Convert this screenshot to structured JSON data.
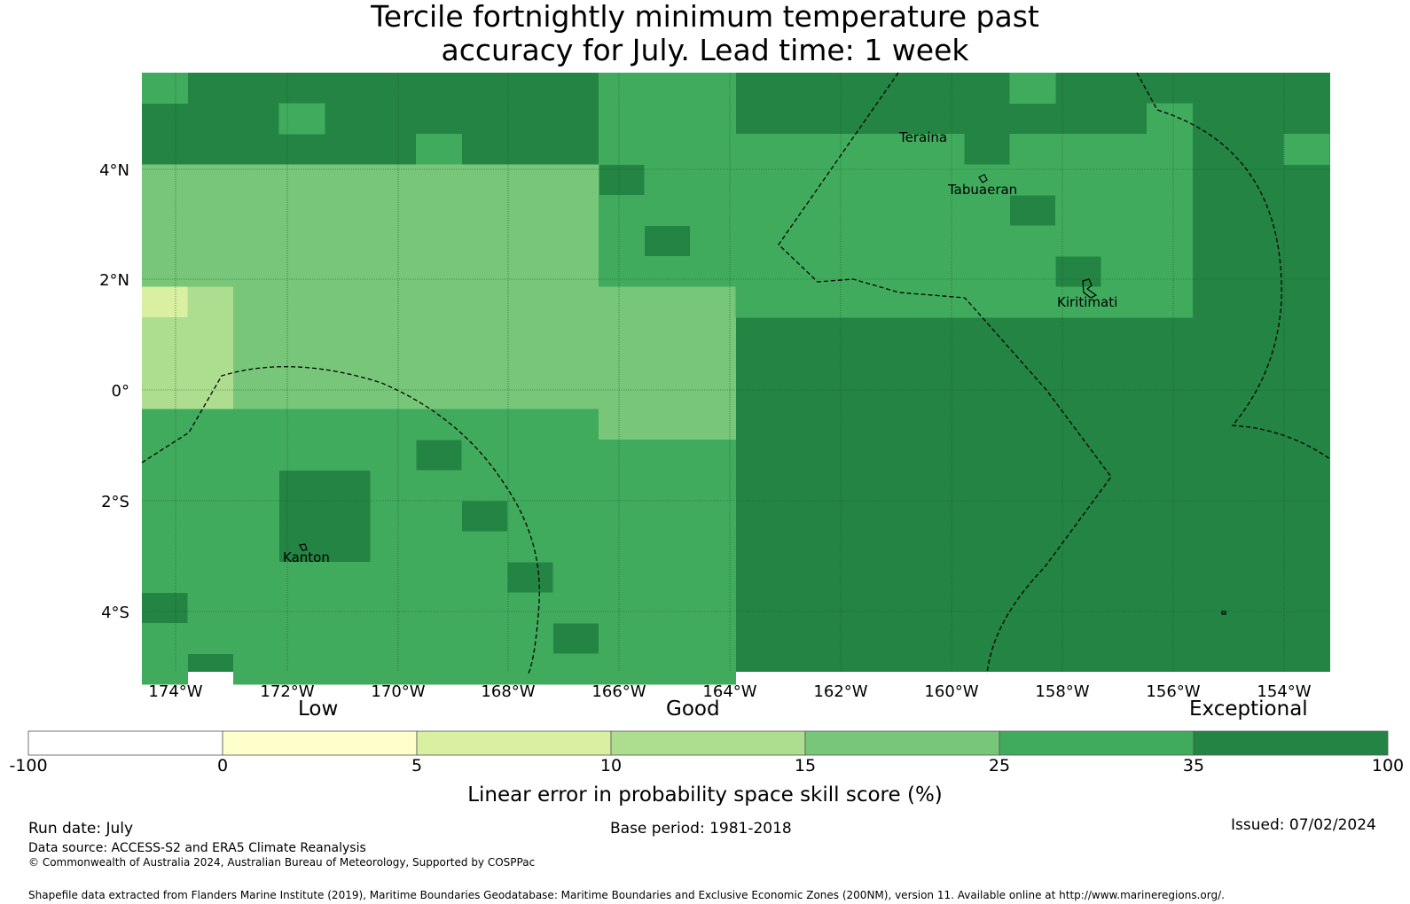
{
  "title_line1": "Tercile fortnightly minimum temperature past",
  "title_line2": "accuracy for July. Lead time: 1 week",
  "map": {
    "lat_labels": [
      "4°N",
      "2°N",
      "0°",
      "2°S",
      "4°S"
    ],
    "lon_labels": [
      "174°W",
      "172°W",
      "170°W",
      "168°W",
      "166°W",
      "164°W",
      "162°W",
      "160°W",
      "158°W",
      "156°W",
      "154°W"
    ],
    "places": [
      "Teraina",
      "Tabuaeran",
      "Kiritimati",
      "Kanton"
    ],
    "colors": {
      "c0": "#ffffcc",
      "c1": "#d9f0a3",
      "c2": "#addd8e",
      "c3": "#78c679",
      "c4": "#41ab5d",
      "c5": "#238443"
    }
  },
  "legend": {
    "words": [
      "Low",
      "Good",
      "Exceptional"
    ],
    "ticks": [
      "-100",
      "0",
      "5",
      "10",
      "15",
      "25",
      "35",
      "100"
    ],
    "colors": [
      "#ffffff",
      "#ffffcc",
      "#d9f0a3",
      "#addd8e",
      "#78c679",
      "#41ab5d",
      "#238443"
    ],
    "label": "Linear error in probability space skill score (%)"
  },
  "footer": {
    "run_date": "Run date: July",
    "base_period": "Base period: 1981-2018",
    "issued": "Issued: 07/02/2024",
    "data_source": "Data source: ACCESS-S2 and ERA5 Climate Reanalysis",
    "copyright": "© Commonwealth of Australia 2024, Australian Bureau of Meteorology, Supported by COSPPac",
    "shapefile": "Shapefile data extracted from Flanders Marine Institute (2019), Maritime Boundaries Geodatabase: Maritime Boundaries and Exclusive Economic Zones (200NM), version 11. Available online at http://www.marineregions.org/."
  }
}
